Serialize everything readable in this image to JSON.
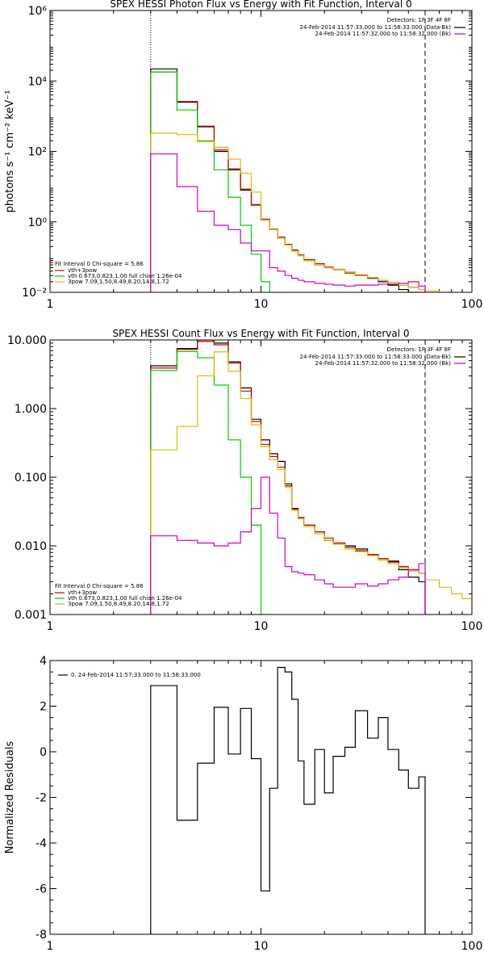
{
  "chart_data": [
    {
      "type": "line",
      "title": "SPEX HESSI Photon Flux vs Energy with Fit Function, Interval 0",
      "xscale": "log",
      "yscale": "log",
      "xlim": [
        1,
        100
      ],
      "ylim": [
        0.01,
        1000000
      ],
      "xticks": [
        1,
        10,
        100
      ],
      "xtick_labels": [
        "1",
        "10",
        "100"
      ],
      "yticks": [
        0.01,
        1,
        100,
        10000,
        1000000
      ],
      "ytick_labels": [
        "10⁻²",
        "10⁰",
        "10²",
        "10⁴",
        "10⁶"
      ],
      "ylabel": "photons s⁻¹ cm⁻² keV⁻¹",
      "xlabel": "",
      "vlines": [
        {
          "x": 3.0,
          "style": "dotted"
        },
        {
          "x": 60.0,
          "style": "dashed"
        }
      ],
      "legend_top_right": {
        "heading": "Detectors: 1F 3F 4F 8F",
        "entries": [
          {
            "text": "24-Feb-2014 11:57:33.000 to 11:58:33.000 (Data-Bk)",
            "color": "#000000"
          },
          {
            "text": "24-Feb-2014 11:57:32.000 to 11:58:32.000 (Bk)",
            "color": "#cc00cc"
          }
        ]
      },
      "legend_bottom_left": {
        "heading": "Fit Interval 0   Chi-square = 5.86",
        "entries": [
          {
            "text": "vth+3pow",
            "color": "#cc0000"
          },
          {
            "text": "vth 0.673,0.823,1.00  full chian 1.26e-04",
            "color": "#00cc00"
          },
          {
            "text": "3pow 7.09,1.50,8.49,8.20,14.8,1.72",
            "color": "#ddbb00"
          }
        ]
      },
      "series": [
        {
          "name": "Data-Bk",
          "color": "#000000",
          "edges": [
            3,
            4,
            5,
            6,
            7,
            8,
            9,
            10,
            11,
            12,
            13,
            14,
            15,
            16,
            18,
            20,
            22,
            25,
            28,
            32,
            36,
            40,
            45,
            50,
            56,
            60
          ],
          "values": [
            22000,
            2500,
            500,
            100,
            30,
            8,
            3,
            1.1,
            0.6,
            0.35,
            0.22,
            0.15,
            0.11,
            0.08,
            0.06,
            0.05,
            0.045,
            0.035,
            0.03,
            0.025,
            0.02,
            0.016,
            0.012,
            0.01,
            0.008
          ]
        },
        {
          "name": "vth+3pow",
          "color": "#cc0000",
          "edges": [
            3,
            4,
            5,
            6,
            7,
            8,
            9,
            10,
            11,
            12,
            13,
            14,
            15,
            16,
            18,
            20,
            22,
            25,
            28,
            32,
            36,
            40,
            45,
            50,
            56,
            60
          ],
          "values": [
            18000,
            2600,
            520,
            110,
            32,
            8.5,
            3.1,
            1.2,
            0.62,
            0.37,
            0.23,
            0.16,
            0.115,
            0.085,
            0.065,
            0.052,
            0.044,
            0.037,
            0.031,
            0.026,
            0.022,
            0.019,
            0.016,
            0.014,
            0.012
          ]
        },
        {
          "name": "vth",
          "color": "#00cc00",
          "edges": [
            3,
            4,
            5,
            6,
            7,
            8,
            9,
            10,
            11
          ],
          "values": [
            18000,
            1500,
            200,
            30,
            5,
            0.8,
            0.12,
            0.02
          ]
        },
        {
          "name": "3pow",
          "color": "#ddbb00",
          "edges": [
            3,
            4,
            5,
            6,
            7,
            8,
            9,
            10,
            11,
            12,
            13,
            14,
            15,
            16,
            18,
            20,
            22,
            25,
            28,
            32,
            36,
            40,
            45,
            50,
            56,
            60,
            70,
            80
          ],
          "values": [
            330,
            300,
            190,
            130,
            60,
            24,
            7,
            1.1,
            0.6,
            0.35,
            0.22,
            0.15,
            0.11,
            0.08,
            0.06,
            0.05,
            0.045,
            0.036,
            0.03,
            0.026,
            0.022,
            0.019,
            0.016,
            0.014,
            0.012,
            0.011,
            0.01
          ]
        },
        {
          "name": "Bk",
          "color": "#cc00cc",
          "edges": [
            3,
            4,
            5,
            6,
            7,
            8,
            9,
            10,
            11,
            12,
            13,
            14,
            15,
            16,
            18,
            20,
            22,
            25,
            28,
            32,
            36,
            40,
            45,
            50,
            56,
            60
          ],
          "values": [
            85,
            10,
            2,
            0.8,
            0.6,
            0.25,
            0.15,
            0.15,
            0.05,
            0.04,
            0.03,
            0.025,
            0.022,
            0.02,
            0.018,
            0.017,
            0.016,
            0.015,
            0.016,
            0.016,
            0.017,
            0.017,
            0.018,
            0.02,
            0.015
          ]
        }
      ]
    },
    {
      "type": "line",
      "title": "SPEX HESSI Count Flux vs Energy with Fit Function, Interval 0",
      "xscale": "log",
      "yscale": "log",
      "xlim": [
        1,
        100
      ],
      "ylim": [
        0.001,
        10
      ],
      "xticks": [
        1,
        10,
        100
      ],
      "xtick_labels": [
        "1",
        "10",
        "100"
      ],
      "yticks": [
        0.001,
        0.01,
        0.1,
        1,
        10
      ],
      "ytick_labels": [
        "0.001",
        "0.010",
        "0.100",
        "1.000",
        "10.000"
      ],
      "xlabel": "",
      "ylabel": "",
      "vlines": [
        {
          "x": 3.0,
          "style": "dotted"
        },
        {
          "x": 60.0,
          "style": "dashed"
        }
      ],
      "legend_top_right": {
        "heading": "Detectors: 1F 3F 4F 8F",
        "entries": [
          {
            "text": "24-Feb-2014 11:57:33.000 to 11:58:33.000 (Data-Bk)",
            "color": "#000000"
          },
          {
            "text": "24-Feb-2014 11:57:32.000 to 11:58:32.000 (Bk)",
            "color": "#cc00cc"
          }
        ]
      },
      "legend_bottom_left": {
        "heading": "Fit Interval 0   Chi-square = 5.86",
        "entries": [
          {
            "text": "vth+3pow",
            "color": "#cc0000"
          },
          {
            "text": "vth 0.673,0.823,1.00  full chian 1.26e-04",
            "color": "#00cc00"
          },
          {
            "text": "3pow 7.09,1.50,8.49,8.20,14.8,1.72",
            "color": "#ddbb00"
          }
        ]
      },
      "series": [
        {
          "name": "Data-Bk",
          "color": "#000000",
          "edges": [
            3,
            4,
            5,
            6,
            7,
            8,
            9,
            10,
            11,
            12,
            13,
            14,
            15,
            16,
            18,
            20,
            22,
            25,
            28,
            32,
            36,
            40,
            45,
            50,
            56,
            60
          ],
          "values": [
            4.2,
            7.5,
            10,
            9,
            4.8,
            2,
            0.7,
            0.35,
            0.22,
            0.17,
            0.08,
            0.035,
            0.025,
            0.02,
            0.016,
            0.012,
            0.011,
            0.01,
            0.009,
            0.0075,
            0.0065,
            0.006,
            0.0045,
            0.0035,
            0.003
          ]
        },
        {
          "name": "vth+3pow",
          "color": "#cc0000",
          "edges": [
            3,
            4,
            5,
            6,
            7,
            8,
            9,
            10,
            11,
            12,
            13,
            14,
            15,
            16,
            18,
            20,
            22,
            25,
            28,
            32,
            36,
            40,
            45,
            50,
            56,
            60
          ],
          "values": [
            3.9,
            7.3,
            9.5,
            8.5,
            4.6,
            1.8,
            0.65,
            0.3,
            0.2,
            0.14,
            0.075,
            0.034,
            0.026,
            0.02,
            0.016,
            0.013,
            0.011,
            0.0095,
            0.0085,
            0.0075,
            0.0065,
            0.0058,
            0.005,
            0.0045,
            0.004
          ]
        },
        {
          "name": "vth",
          "color": "#00cc00",
          "edges": [
            3,
            4,
            5,
            6,
            7,
            8,
            9,
            10,
            11
          ],
          "values": [
            3.6,
            6.8,
            5.5,
            2.2,
            0.35,
            0.1,
            0.02,
            0.001
          ]
        },
        {
          "name": "3pow",
          "color": "#ddbb00",
          "edges": [
            3,
            4,
            5,
            6,
            7,
            8,
            9,
            10,
            11,
            12,
            13,
            14,
            15,
            16,
            18,
            20,
            22,
            25,
            28,
            32,
            36,
            40,
            45,
            50,
            56,
            60,
            70,
            80,
            90,
            100
          ],
          "values": [
            0.25,
            0.55,
            3,
            6.7,
            3.5,
            1.4,
            0.58,
            0.28,
            0.18,
            0.13,
            0.072,
            0.033,
            0.025,
            0.019,
            0.015,
            0.012,
            0.0105,
            0.009,
            0.0082,
            0.0072,
            0.0062,
            0.0055,
            0.0048,
            0.0043,
            0.004,
            0.0032,
            0.0025,
            0.002,
            0.0017
          ]
        },
        {
          "name": "Bk",
          "color": "#cc00cc",
          "edges": [
            3,
            4,
            5,
            6,
            7,
            8,
            9,
            10,
            11,
            12,
            13,
            14,
            15,
            16,
            18,
            20,
            22,
            25,
            28,
            32,
            36,
            40,
            45,
            50,
            56,
            60
          ],
          "values": [
            0.014,
            0.012,
            0.011,
            0.01,
            0.011,
            0.016,
            0.035,
            0.1,
            0.03,
            0.013,
            0.005,
            0.0042,
            0.004,
            0.0038,
            0.0032,
            0.0028,
            0.0025,
            0.0025,
            0.0028,
            0.0026,
            0.0028,
            0.0032,
            0.0035,
            0.0045,
            0.0055
          ]
        }
      ]
    },
    {
      "type": "line",
      "title": "",
      "xscale": "log",
      "yscale": "linear",
      "xlim": [
        1,
        100
      ],
      "ylim": [
        -8,
        4
      ],
      "xticks": [
        1,
        10,
        100
      ],
      "xtick_labels": [
        "1",
        "10",
        "100"
      ],
      "yticks": [
        -8,
        -6,
        -4,
        -2,
        0,
        2,
        4
      ],
      "ytick_labels": [
        "-8",
        "-6",
        "-4",
        "-2",
        "0",
        "2",
        "4"
      ],
      "ylabel": "Normalized Residuals",
      "xlabel": "",
      "legend": {
        "entries": [
          {
            "text": "0. 24-Feb-2014 11:57:33.000 to 11:58:33.000",
            "color": "#000000"
          }
        ]
      },
      "series": [
        {
          "name": "0. 24-Feb-2014 11:57:33.000 to 11:58:33.000",
          "color": "#000000",
          "edges": [
            3,
            4,
            5,
            6,
            7,
            8,
            9,
            10,
            11,
            12,
            13,
            14,
            15,
            16,
            18,
            20,
            22,
            25,
            28,
            32,
            36,
            40,
            45,
            50,
            56,
            60
          ],
          "values": [
            2.9,
            -3.0,
            -0.5,
            1.95,
            -0.1,
            1.9,
            -0.3,
            -6.1,
            -1.6,
            3.7,
            3.5,
            2.3,
            -0.4,
            -2.3,
            0.1,
            -1.8,
            -0.2,
            0.2,
            1.8,
            0.6,
            1.5,
            0.1,
            -0.8,
            -1.6,
            -1.1
          ]
        }
      ]
    }
  ]
}
